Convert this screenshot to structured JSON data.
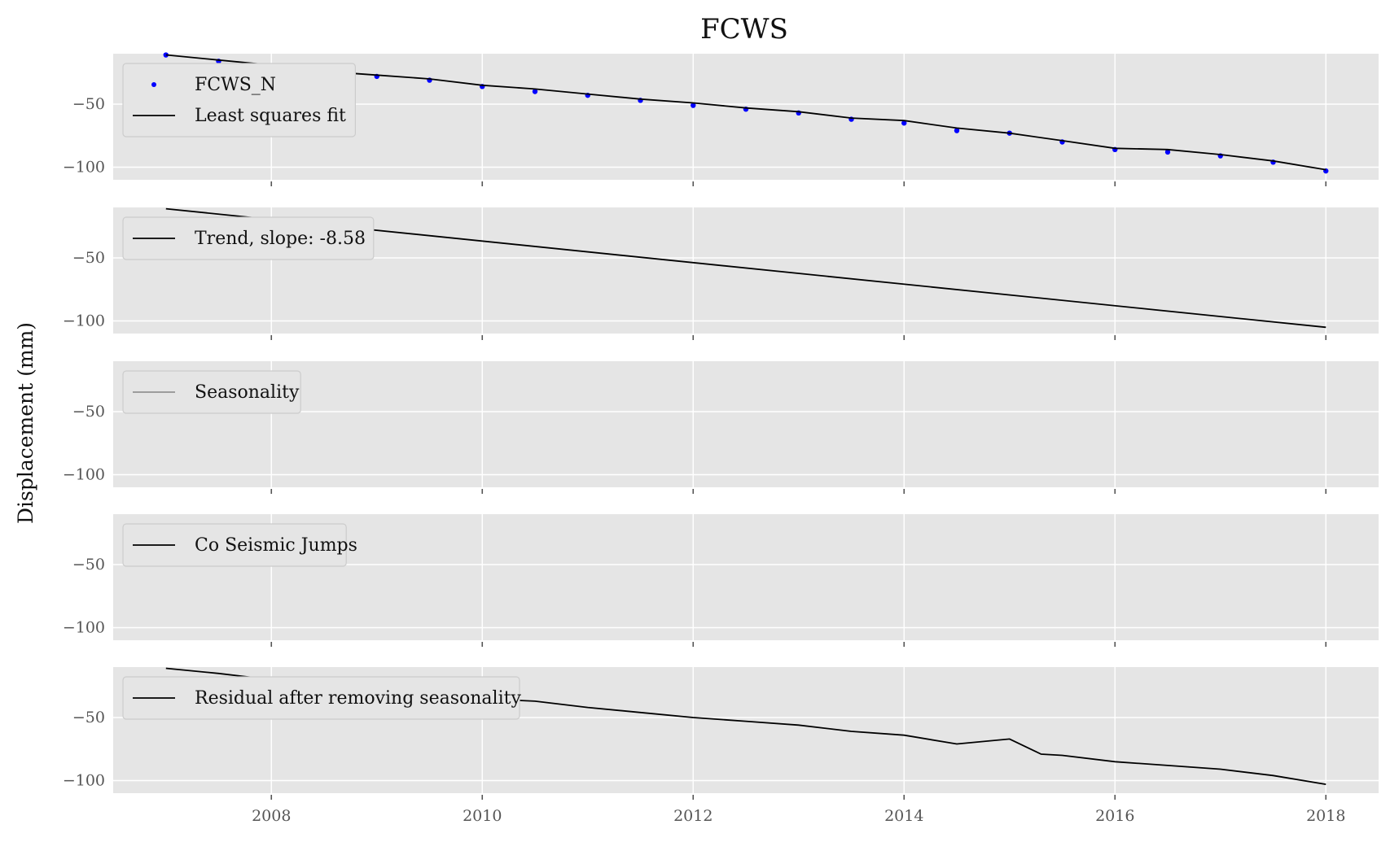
{
  "chart_data": {
    "type": "line",
    "title": "FCWS",
    "ylabel": "Displacement (mm)",
    "xlim": [
      2006.5,
      2018.5
    ],
    "ylim": [
      -110,
      -10
    ],
    "x_ticks": [
      "2008",
      "2010",
      "2012",
      "2014",
      "2016",
      "2018"
    ],
    "x_tick_values": [
      2008,
      2010,
      2012,
      2014,
      2016,
      2018
    ],
    "y_ticks": [
      "−50",
      "−100"
    ],
    "y_tick_values": [
      -50,
      -100
    ],
    "grid": true,
    "legend_placement": "upper-left",
    "panels": [
      {
        "id": "observed",
        "series": [
          {
            "name": "FCWS_N",
            "kind": "points",
            "color": "#0000ff",
            "x": [
              2007.0,
              2007.5,
              2008.0,
              2008.5,
              2009.0,
              2009.5,
              2010.0,
              2010.5,
              2011.0,
              2011.5,
              2012.0,
              2012.5,
              2013.0,
              2013.5,
              2014.0,
              2014.5,
              2015.0,
              2015.5,
              2016.0,
              2016.5,
              2017.0,
              2017.5,
              2018.0
            ],
            "y": [
              -11,
              -16,
              -20,
              -25,
              -28,
              -31,
              -36,
              -40,
              -43,
              -47,
              -51,
              -54,
              -57,
              -62,
              -65,
              -71,
              -73,
              -80,
              -86,
              -88,
              -91,
              -96,
              -103
            ]
          },
          {
            "name": "Least squares fit",
            "kind": "line",
            "color": "#000000",
            "x": [
              2007.0,
              2007.5,
              2008.0,
              2008.5,
              2009.0,
              2009.5,
              2010.0,
              2010.5,
              2011.0,
              2011.5,
              2012.0,
              2012.5,
              2013.0,
              2013.5,
              2014.0,
              2014.5,
              2015.0,
              2015.5,
              2016.0,
              2016.5,
              2017.0,
              2017.5,
              2018.0
            ],
            "y": [
              -11,
              -15,
              -19,
              -24,
              -27,
              -30,
              -35,
              -38,
              -42,
              -46,
              -49,
              -53,
              -56,
              -61,
              -63,
              -69,
              -73,
              -79,
              -85,
              -86,
              -90,
              -95,
              -102
            ]
          }
        ]
      },
      {
        "id": "trend",
        "series": [
          {
            "name": "Trend, slope: -8.58",
            "kind": "line",
            "color": "#000000",
            "x": [
              2007.0,
              2018.0
            ],
            "y": [
              -11,
              -105
            ]
          }
        ]
      },
      {
        "id": "seasonality",
        "series": [
          {
            "name": "Seasonality",
            "kind": "line",
            "color": "#555555",
            "x": [],
            "y": []
          }
        ]
      },
      {
        "id": "jumps",
        "series": [
          {
            "name": "Co Seismic Jumps",
            "kind": "line",
            "color": "#000000",
            "x": [],
            "y": []
          }
        ]
      },
      {
        "id": "residual",
        "series": [
          {
            "name": "Residual after removing seasonality",
            "kind": "line",
            "color": "#000000",
            "x": [
              2007.0,
              2007.5,
              2008.0,
              2008.5,
              2009.0,
              2009.5,
              2010.0,
              2010.5,
              2011.0,
              2011.5,
              2012.0,
              2012.5,
              2013.0,
              2013.5,
              2014.0,
              2014.5,
              2015.0,
              2015.3,
              2015.5,
              2016.0,
              2016.5,
              2017.0,
              2017.5,
              2018.0
            ],
            "y": [
              -11,
              -15,
              -20,
              -23,
              -27,
              -31,
              -35,
              -37,
              -42,
              -46,
              -50,
              -53,
              -56,
              -61,
              -64,
              -71,
              -67,
              -79,
              -80,
              -85,
              -88,
              -91,
              -96,
              -103
            ]
          }
        ]
      }
    ]
  }
}
